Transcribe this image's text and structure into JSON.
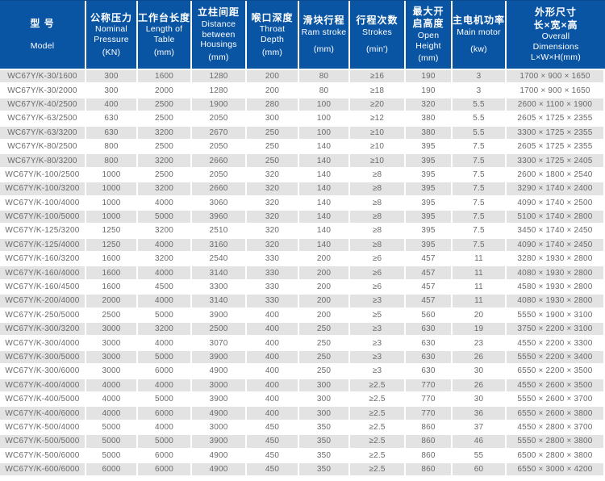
{
  "colors": {
    "header_bg": "#0a55a3",
    "header_text": "#ffffff",
    "stripe_bg": "#e3e3e3",
    "row_bg": "#ffffff",
    "data_text": "#6a6a6a"
  },
  "chart_data": {
    "type": "table",
    "title": "WC67Y/K press brake specification table",
    "columns": [
      {
        "key": "model",
        "zh": [
          "型 号"
        ],
        "en": [
          "Model"
        ]
      },
      {
        "key": "nominal-pressure",
        "zh": [
          "公称压力"
        ],
        "en": [
          "Nominal",
          "Pressure",
          "(KN)"
        ]
      },
      {
        "key": "table-length",
        "zh": [
          "工作台长度"
        ],
        "en": [
          "Length of",
          "Table",
          "(mm)"
        ]
      },
      {
        "key": "housing-distance",
        "zh": [
          "立柱间距"
        ],
        "en": [
          "Distance",
          "between",
          "Housings",
          "(mm)"
        ]
      },
      {
        "key": "throat-depth",
        "zh": [
          "喉口深度"
        ],
        "en": [
          "Throat",
          "Depth",
          "(mm)"
        ]
      },
      {
        "key": "ram-stroke",
        "zh": [
          "滑块行程"
        ],
        "en": [
          "Ram stroke",
          "(mm)"
        ]
      },
      {
        "key": "strokes",
        "zh": [
          "行程次数"
        ],
        "en": [
          "Strokes",
          "(min')"
        ]
      },
      {
        "key": "open-height",
        "zh": [
          "最大开",
          "启高度"
        ],
        "en": [
          "Open",
          "Height",
          "(mm)"
        ]
      },
      {
        "key": "main-motor",
        "zh": [
          "主电机功率"
        ],
        "en": [
          "Main motor",
          "(kw)"
        ]
      },
      {
        "key": "overall-dimensions",
        "zh": [
          "外形尺寸",
          "长×宽×高"
        ],
        "en": [
          "Overall",
          "Dimensions",
          "L×W×H(mm)"
        ]
      }
    ],
    "rows": [
      [
        "WC67Y/K-30/1600",
        "300",
        "1600",
        "1280",
        "200",
        "80",
        "≥16",
        "190",
        "3",
        "1700 × 900 × 1650"
      ],
      [
        "WC67Y/K-30/2000",
        "300",
        "2000",
        "1280",
        "200",
        "80",
        "≥18",
        "190",
        "3",
        "1700 × 900 × 1650"
      ],
      [
        "WC67Y/K-40/2500",
        "400",
        "2500",
        "1900",
        "280",
        "100",
        "≥20",
        "320",
        "5.5",
        "2600 × 1100 × 1900"
      ],
      [
        "WC67Y/K-63/2500",
        "630",
        "2500",
        "2050",
        "300",
        "100",
        "≥12",
        "380",
        "5.5",
        "2605 × 1725 × 2355"
      ],
      [
        "WC67Y/K-63/3200",
        "630",
        "3200",
        "2670",
        "250",
        "100",
        "≥10",
        "380",
        "5.5",
        "3300 × 1725 × 2355"
      ],
      [
        "WC67Y/K-80/2500",
        "800",
        "2500",
        "2050",
        "250",
        "140",
        "≥10",
        "395",
        "7.5",
        "2605 × 1725 × 2355"
      ],
      [
        "WC67Y/K-80/3200",
        "800",
        "3200",
        "2660",
        "250",
        "140",
        "≥10",
        "395",
        "7.5",
        "3300 × 1725 × 2405"
      ],
      [
        "WC67Y/K-100/2500",
        "1000",
        "2500",
        "2050",
        "320",
        "140",
        "≥8",
        "395",
        "7.5",
        "2600 × 1800 × 2540"
      ],
      [
        "WC67Y/K-100/3200",
        "1000",
        "3200",
        "2660",
        "320",
        "140",
        "≥8",
        "395",
        "7.5",
        "3290 × 1740 × 2400"
      ],
      [
        "WC67Y/K-100/4000",
        "1000",
        "4000",
        "3060",
        "320",
        "140",
        "≥8",
        "395",
        "7.5",
        "4090 × 1740 × 2500"
      ],
      [
        "WC67Y/K-100/5000",
        "1000",
        "5000",
        "3960",
        "320",
        "140",
        "≥8",
        "395",
        "7.5",
        "5100 × 1740 × 2800"
      ],
      [
        "WC67Y/K-125/3200",
        "1250",
        "3200",
        "2510",
        "320",
        "140",
        "≥8",
        "395",
        "7.5",
        "3450 × 1740 × 2450"
      ],
      [
        "WC67Y/K-125/4000",
        "1250",
        "4000",
        "3160",
        "320",
        "140",
        "≥8",
        "395",
        "7.5",
        "4090 × 1740 × 2450"
      ],
      [
        "WC67Y/K-160/3200",
        "1600",
        "3200",
        "2540",
        "330",
        "200",
        "≥6",
        "457",
        "11",
        "3280 × 1930 × 2800"
      ],
      [
        "WC67Y/K-160/4000",
        "1600",
        "4000",
        "3140",
        "330",
        "200",
        "≥6",
        "457",
        "11",
        "4080 × 1930 × 2800"
      ],
      [
        "WC67Y/K-160/4500",
        "1600",
        "4500",
        "3300",
        "330",
        "200",
        "≥6",
        "457",
        "11",
        "4580 × 1930 × 2800"
      ],
      [
        "WC67Y/K-200/4000",
        "2000",
        "4000",
        "3140",
        "330",
        "200",
        "≥3",
        "457",
        "11",
        "4080 × 1930 × 2800"
      ],
      [
        "WC67Y/K-250/5000",
        "2500",
        "5000",
        "3900",
        "400",
        "200",
        "≥5",
        "560",
        "20",
        "5550 × 1900 × 3100"
      ],
      [
        "WC67Y/K-300/3200",
        "3000",
        "3200",
        "2500",
        "400",
        "250",
        "≥3",
        "630",
        "19",
        "3750 × 2200 × 3100"
      ],
      [
        "WC67Y/K-300/4000",
        "3000",
        "4000",
        "3070",
        "400",
        "250",
        "≥3",
        "630",
        "23",
        "4550 × 2200 × 3300"
      ],
      [
        "WC67Y/K-300/5000",
        "3000",
        "5000",
        "3900",
        "400",
        "250",
        "≥3",
        "630",
        "26",
        "5550 × 2200 × 3400"
      ],
      [
        "WC67Y/K-300/6000",
        "3000",
        "6000",
        "4900",
        "400",
        "250",
        "≥3",
        "630",
        "30",
        "6550 × 2200 × 3500"
      ],
      [
        "WC67Y/K-400/4000",
        "4000",
        "4000",
        "3000",
        "400",
        "300",
        "≥2.5",
        "770",
        "26",
        "4550 × 2600 × 3500"
      ],
      [
        "WC67Y/K-400/5000",
        "4000",
        "5000",
        "3900",
        "400",
        "300",
        "≥2.5",
        "770",
        "30",
        "5550 × 2600 × 3700"
      ],
      [
        "WC67Y/K-400/6000",
        "4000",
        "6000",
        "4900",
        "400",
        "300",
        "≥2.5",
        "770",
        "36",
        "6550 × 2600 × 3800"
      ],
      [
        "WC67Y/K-500/4000",
        "5000",
        "4000",
        "3000",
        "450",
        "350",
        "≥2.5",
        "860",
        "37",
        "4550 × 2800 × 3700"
      ],
      [
        "WC67Y/K-500/5000",
        "5000",
        "5000",
        "3900",
        "450",
        "350",
        "≥2.5",
        "860",
        "46",
        "5550 × 2800 × 3800"
      ],
      [
        "WC67Y/K-500/6000",
        "5000",
        "6000",
        "4900",
        "450",
        "350",
        "≥2.5",
        "860",
        "55",
        "6500 × 2800 × 3800"
      ],
      [
        "WC67Y/K-600/6000",
        "6000",
        "6000",
        "4900",
        "450",
        "350",
        "≥2.5",
        "860",
        "60",
        "6550 × 3000 × 4200"
      ]
    ]
  }
}
